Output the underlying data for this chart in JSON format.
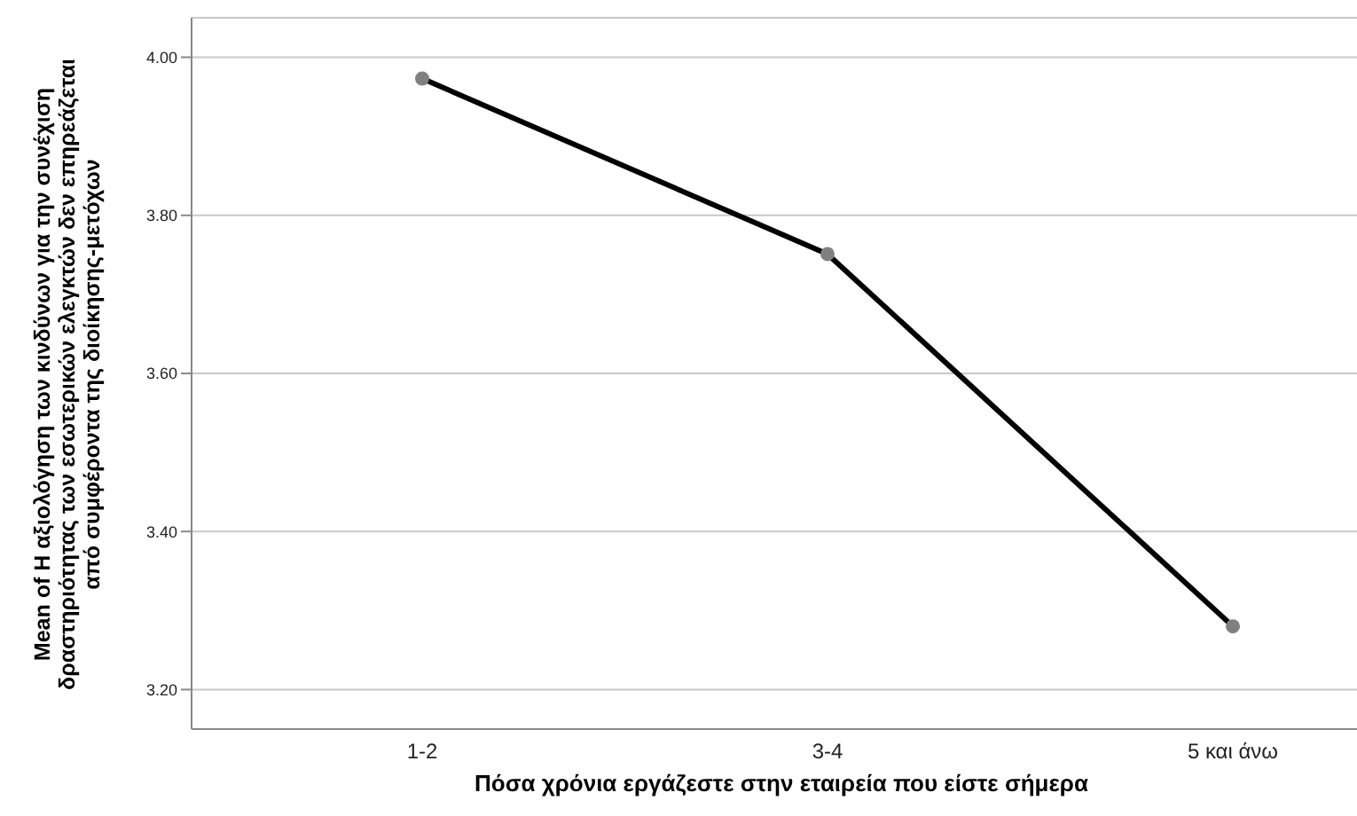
{
  "chart_data": {
    "type": "line",
    "xlabel": "Πόσα χρόνια εργάζεστε στην εταιρεία που είστε σήμερα",
    "ylabel": "Mean of Η αξιολόγηση των κινδύνων για την συνέχιση δραστηριότητας των εσωτερικών ελεγκτών δεν επηρεάζεται από συμφέροντα της διοίκησης-μετόχων",
    "categories": [
      "1-2",
      "3-4",
      "5 και άνω"
    ],
    "series": [
      {
        "color": "#000000",
        "values": [
          3.973,
          3.751,
          3.28
        ]
      }
    ],
    "ylim": [
      3.15,
      4.05
    ],
    "yticks": [
      {
        "value": 3.2,
        "label": "3.20"
      },
      {
        "value": 3.4,
        "label": "3.40"
      },
      {
        "value": 3.6,
        "label": "3.60"
      },
      {
        "value": 3.8,
        "label": "3.80"
      },
      {
        "value": 4.0,
        "label": "4.00"
      }
    ],
    "grid": "y",
    "marker": "circle",
    "line_style": "solid"
  }
}
